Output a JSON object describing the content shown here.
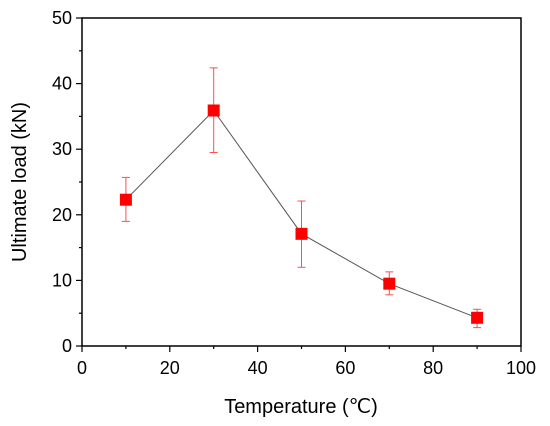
{
  "chart_data": {
    "type": "scatter",
    "title": "",
    "xlabel": "Temperature (℃)",
    "ylabel": "Ultimate load (kN)",
    "xlim": [
      0,
      100
    ],
    "ylim": [
      0,
      50
    ],
    "xticks": [
      0,
      20,
      40,
      60,
      80,
      100
    ],
    "yticks": [
      0,
      10,
      20,
      30,
      40,
      50
    ],
    "grid": false,
    "legend": "none",
    "line_color": "#555555",
    "marker_color": "#ff0000",
    "errorbar_color": "#ff4d4d",
    "series": [
      {
        "x": [
          10,
          30,
          50,
          70,
          90
        ],
        "y": [
          22.3,
          35.9,
          17.1,
          9.5,
          4.3
        ],
        "error_upper": [
          25.7,
          42.4,
          22.1,
          11.3,
          5.6
        ],
        "error_lower": [
          19.0,
          29.5,
          12.0,
          7.8,
          2.8
        ]
      }
    ]
  }
}
